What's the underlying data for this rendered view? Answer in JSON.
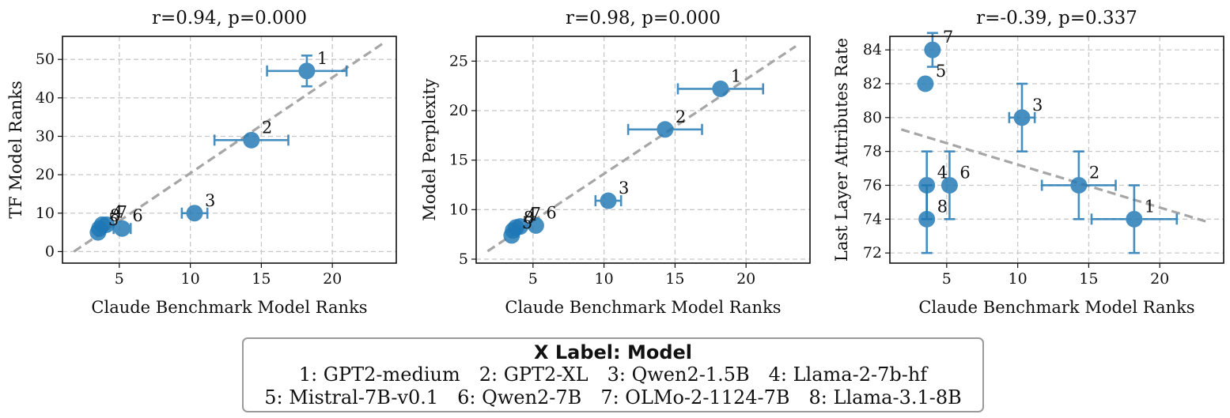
{
  "chart_data": [
    {
      "type": "scatter",
      "title": "r=0.94, p=0.000",
      "xlabel": "Claude Benchmark Model Ranks",
      "ylabel": "TF Model Ranks",
      "xlim": [
        1.0,
        24.5
      ],
      "ylim": [
        -3,
        56
      ],
      "xticks": [
        5,
        10,
        15,
        20
      ],
      "yticks": [
        0,
        10,
        20,
        30,
        40,
        50
      ],
      "points": [
        {
          "id": "1",
          "x": 18.2,
          "y": 47,
          "xerr": 2.8,
          "yerr": 4
        },
        {
          "id": "2",
          "x": 14.3,
          "y": 29,
          "xerr": 2.6,
          "yerr": 1
        },
        {
          "id": "3",
          "x": 10.3,
          "y": 10,
          "xerr": 0.9,
          "yerr": 0.5
        },
        {
          "id": "4",
          "x": 3.8,
          "y": 7,
          "xerr": 0,
          "yerr": 0
        },
        {
          "id": "5",
          "x": 3.5,
          "y": 5,
          "xerr": 0,
          "yerr": 0
        },
        {
          "id": "6",
          "x": 5.2,
          "y": 6,
          "xerr": 0.6,
          "yerr": 0
        },
        {
          "id": "7",
          "x": 4.1,
          "y": 7,
          "xerr": 0,
          "yerr": 0
        },
        {
          "id": "8",
          "x": 3.6,
          "y": 6,
          "xerr": 0,
          "yerr": 0
        }
      ],
      "trend": {
        "x0": 1.8,
        "y0": 0,
        "x1": 23.5,
        "y1": 54
      }
    },
    {
      "type": "scatter",
      "title": "r=0.98, p=0.000",
      "xlabel": "Claude Benchmark Model Ranks",
      "ylabel": "Model Perplexity",
      "xlim": [
        1.0,
        24.5
      ],
      "ylim": [
        4.6,
        27.5
      ],
      "xticks": [
        5,
        10,
        15,
        20
      ],
      "yticks": [
        5,
        10,
        15,
        20,
        25
      ],
      "points": [
        {
          "id": "1",
          "x": 18.2,
          "y": 22.2,
          "xerr": 3.0,
          "yerr": 0
        },
        {
          "id": "2",
          "x": 14.3,
          "y": 18.1,
          "xerr": 2.6,
          "yerr": 0
        },
        {
          "id": "3",
          "x": 10.3,
          "y": 10.9,
          "xerr": 0.9,
          "yerr": 0
        },
        {
          "id": "4",
          "x": 3.8,
          "y": 8.2,
          "xerr": 0,
          "yerr": 0
        },
        {
          "id": "5",
          "x": 3.5,
          "y": 7.4,
          "xerr": 0,
          "yerr": 0
        },
        {
          "id": "6",
          "x": 5.2,
          "y": 8.4,
          "xerr": 0,
          "yerr": 0
        },
        {
          "id": "7",
          "x": 4.1,
          "y": 8.3,
          "xerr": 0,
          "yerr": 0
        },
        {
          "id": "8",
          "x": 3.6,
          "y": 7.9,
          "xerr": 0,
          "yerr": 0
        }
      ],
      "trend": {
        "x0": 1.8,
        "y0": 5.8,
        "x1": 23.5,
        "y1": 26.5
      }
    },
    {
      "type": "scatter",
      "title": "r=-0.39, p=0.337",
      "xlabel": "Claude Benchmark Model Ranks",
      "ylabel": "Last Layer Attributes Rate",
      "xlim": [
        1.0,
        24.5
      ],
      "ylim": [
        71.4,
        84.8
      ],
      "xticks": [
        5,
        10,
        15,
        20
      ],
      "yticks": [
        72,
        74,
        76,
        78,
        80,
        82,
        84
      ],
      "points": [
        {
          "id": "1",
          "x": 18.2,
          "y": 74,
          "xerr": 3.0,
          "yerr": 2
        },
        {
          "id": "2",
          "x": 14.3,
          "y": 76,
          "xerr": 2.6,
          "yerr": 2
        },
        {
          "id": "3",
          "x": 10.3,
          "y": 80,
          "xerr": 0.9,
          "yerr": 2
        },
        {
          "id": "4",
          "x": 3.6,
          "y": 76,
          "xerr": 0,
          "yerr": 2
        },
        {
          "id": "5",
          "x": 3.5,
          "y": 82,
          "xerr": 0,
          "yerr": 0
        },
        {
          "id": "6",
          "x": 5.2,
          "y": 76,
          "xerr": 0,
          "yerr": 2
        },
        {
          "id": "7",
          "x": 4.0,
          "y": 84,
          "xerr": 0,
          "yerr": 1
        },
        {
          "id": "8",
          "x": 3.6,
          "y": 74,
          "xerr": 0,
          "yerr": 2
        }
      ],
      "trend": {
        "x0": 1.8,
        "y0": 79.3,
        "x1": 23.5,
        "y1": 73.8
      }
    }
  ],
  "legend": {
    "title": "X Label",
    "title_value": "Model",
    "row1": [
      "1: GPT2-medium",
      "2: GPT2-XL",
      "3: Qwen2-1.5B",
      "4: Llama-2-7b-hf"
    ],
    "row2": [
      "5: Mistral-7B-v0.1",
      "6: Qwen2-7B",
      "7: OLMo-2-1124-7B",
      "8: Llama-3.1-8B"
    ]
  },
  "colors": {
    "point": "#1f77b4",
    "trend": "#a6a6a6",
    "grid": "#c8c8c8"
  }
}
